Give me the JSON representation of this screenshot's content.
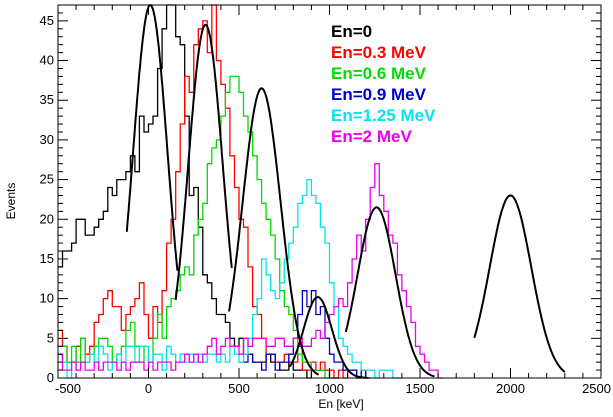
{
  "chart_data": {
    "type": "step-histogram-with-gaussian-fits",
    "xlabel": "En [keV]",
    "ylabel": "Events",
    "xlim": [
      -500,
      2500
    ],
    "ylim": [
      0,
      47
    ],
    "x_ticks": [
      -500,
      0,
      500,
      1000,
      1500,
      2000,
      2500
    ],
    "x_tick_labels": [
      "-500",
      "0",
      "500",
      "1000",
      "1500",
      "2000",
      "2500"
    ],
    "y_ticks": [
      0,
      5,
      10,
      15,
      20,
      25,
      30,
      35,
      40,
      45
    ],
    "y_tick_labels": [
      "0",
      "5",
      "10",
      "15",
      "20",
      "25",
      "30",
      "35",
      "40",
      "45"
    ],
    "bin_width": 25,
    "legend_position": "top-right",
    "series": [
      {
        "name": "En=0",
        "color": "#000000",
        "start": -500,
        "values": [
          14,
          16,
          16,
          17,
          20,
          20,
          18,
          18,
          19,
          20,
          21,
          24,
          23,
          25,
          25,
          26,
          28,
          26,
          33,
          31,
          32,
          33,
          39,
          44,
          47,
          47,
          43,
          42,
          33,
          23,
          24,
          19,
          13,
          12,
          10,
          8,
          8,
          7,
          5,
          4,
          5,
          3,
          3,
          2,
          2,
          2,
          3,
          2,
          2,
          1,
          1,
          2,
          1,
          1,
          1,
          0,
          1,
          1,
          1,
          1,
          0,
          0
        ]
      },
      {
        "name": "En=0.3 MeV",
        "color": "#ff0000",
        "start": -500,
        "values": [
          6,
          4,
          2,
          2,
          4,
          5,
          3,
          4,
          7,
          8,
          10,
          11,
          9,
          9,
          6,
          8,
          9,
          10,
          12,
          8,
          5,
          9,
          7,
          11,
          17,
          20,
          26,
          32,
          38,
          36,
          42,
          44,
          45,
          41,
          47,
          40,
          37,
          34,
          28,
          24,
          20,
          19,
          14,
          9,
          8,
          5,
          3,
          3,
          2,
          2,
          3,
          2,
          2,
          4,
          1,
          1,
          2,
          1,
          2,
          1,
          1,
          0,
          1,
          0,
          1,
          1,
          0,
          1,
          0
        ]
      },
      {
        "name": "En=0.6 MeV",
        "color": "#00dd00",
        "start": -500,
        "values": [
          4,
          4,
          2,
          4,
          2,
          5,
          2,
          3,
          4,
          5,
          5,
          4,
          2,
          3,
          4,
          6,
          7,
          4,
          2,
          4,
          2,
          5,
          8,
          5,
          9,
          10,
          11,
          13,
          14,
          13,
          18,
          20,
          22,
          27,
          29,
          30,
          33,
          36,
          38,
          38,
          36,
          33,
          31,
          28,
          25,
          22,
          20,
          18,
          15,
          11,
          9,
          8,
          6,
          3,
          2,
          2,
          1,
          1,
          1,
          0
        ]
      },
      {
        "name": "En=0.9 MeV",
        "color": "#0000cc",
        "start": 500,
        "values": [
          2,
          2,
          3,
          2,
          2,
          1,
          3,
          3,
          1,
          2,
          2,
          3,
          5,
          8,
          11,
          9,
          11,
          8,
          9,
          5,
          3,
          2,
          2,
          1,
          1,
          1,
          0,
          1,
          0
        ]
      },
      {
        "name": "En=1.25 MeV",
        "color": "#00e5ee",
        "start": -500,
        "values": [
          3,
          2,
          0,
          2,
          1,
          2,
          2,
          3,
          2,
          4,
          3,
          1,
          2,
          3,
          2,
          4,
          4,
          2,
          4,
          4,
          2,
          3,
          3,
          1,
          4,
          3,
          2,
          3,
          2,
          3,
          2,
          3,
          2,
          3,
          3,
          2,
          3,
          2,
          4,
          3,
          2,
          3,
          5,
          8,
          10,
          15,
          13,
          11,
          10,
          12,
          15,
          17,
          19,
          22,
          23,
          25,
          23,
          22,
          19,
          17,
          12,
          9,
          5,
          4,
          3,
          2,
          2,
          1,
          1,
          1,
          0,
          1,
          1,
          1,
          0,
          0
        ]
      },
      {
        "name": "En=2 MeV",
        "color": "#ee00ee",
        "start": -500,
        "values": [
          3,
          1,
          1,
          2,
          1,
          2,
          1,
          1,
          2,
          1,
          2,
          2,
          2,
          1,
          2,
          1,
          2,
          2,
          2,
          1,
          2,
          1,
          2,
          2,
          2,
          1,
          2,
          2,
          3,
          2,
          3,
          2,
          3,
          4,
          5,
          3,
          4,
          5,
          4,
          4,
          3,
          5,
          4,
          5,
          5,
          5,
          4,
          4,
          5,
          5,
          4,
          4,
          5,
          5,
          4,
          4,
          5,
          6,
          5,
          7,
          8,
          9,
          10,
          9,
          12,
          15,
          18,
          16,
          20,
          24,
          27,
          23,
          21,
          18,
          17,
          13,
          11,
          9,
          7,
          4,
          3,
          2,
          1,
          1,
          0
        ]
      }
    ],
    "fits": [
      {
        "color": "#000000",
        "amplitude": 47,
        "mean": 10,
        "sigma": 95,
        "range": [
          -120,
          160
        ]
      },
      {
        "color": "#000000",
        "amplitude": 44.5,
        "mean": 315,
        "sigma": 95,
        "range": [
          150,
          460
        ]
      },
      {
        "color": "#000000",
        "amplitude": 36.5,
        "mean": 625,
        "sigma": 105,
        "range": [
          445,
          940
        ]
      },
      {
        "color": "#000000",
        "amplitude": 10.2,
        "mean": 935,
        "sigma": 78,
        "range": [
          780,
          1210
        ]
      },
      {
        "color": "#000000",
        "amplitude": 21.5,
        "mean": 1260,
        "sigma": 105,
        "range": [
          1090,
          1580
        ]
      },
      {
        "color": "#000000",
        "amplitude": 23,
        "mean": 2000,
        "sigma": 115,
        "range": [
          1800,
          2300
        ]
      }
    ]
  }
}
